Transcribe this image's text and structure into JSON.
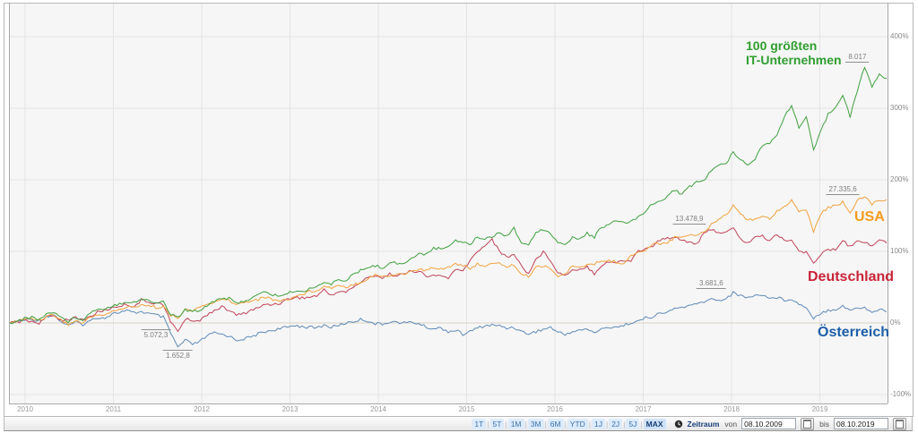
{
  "chart_data": {
    "type": "line",
    "title": "",
    "xlabel": "",
    "ylabel": "",
    "frequency": "monthly",
    "x_range": [
      "08.10.2009",
      "08.10.2019"
    ],
    "ylim": [
      -100,
      400
    ],
    "grid": true,
    "x_tick_labels": [
      "2010",
      "2011",
      "2012",
      "2013",
      "2014",
      "2015",
      "2016",
      "2017",
      "2018",
      "2019"
    ],
    "y_tick_labels": [
      "400%",
      "300%",
      "200%",
      "100%",
      "0%",
      "-100%"
    ],
    "series": [
      {
        "name": "100 größten IT-Unternehmen",
        "label_lines": [
          "100 größten",
          "IT-Unternehmen"
        ],
        "line_color": "#3fa03f",
        "label_color": "#2f9e2f",
        "label_pos": {
          "x": 832,
          "y": 43,
          "size": 14
        },
        "values": [
          0,
          3,
          6,
          8,
          5,
          12,
          16,
          8,
          2,
          8,
          5,
          14,
          20,
          20,
          24,
          27,
          30,
          29,
          33,
          31,
          28,
          30,
          12,
          8,
          18,
          16,
          18,
          25,
          31,
          35,
          34,
          27,
          31,
          34,
          39,
          44,
          39,
          38,
          41,
          45,
          43,
          48,
          52,
          56,
          54,
          61,
          60,
          67,
          73,
          78,
          80,
          77,
          85,
          83,
          84,
          90,
          96,
          97,
          105,
          103,
          108,
          116,
          113,
          110,
          120,
          118,
          121,
          126,
          122,
          133,
          112,
          108,
          128,
          131,
          126,
          112,
          108,
          120,
          117,
          125,
          120,
          134,
          138,
          142,
          139,
          142,
          148,
          157,
          166,
          171,
          177,
          186,
          180,
          190,
          197,
          199,
          213,
          220,
          222,
          240,
          228,
          222,
          230,
          248,
          252,
          262,
          288,
          305,
          272,
          288,
          240,
          268,
          292,
          302,
          320,
          288,
          325,
          358,
          330,
          348,
          340
        ]
      },
      {
        "name": "USA",
        "label_lines": [
          "USA"
        ],
        "line_color": "#f1a23e",
        "label_color": "#f59b1e",
        "label_pos": {
          "x": 953,
          "y": 234,
          "size": 16
        },
        "values": [
          0,
          3,
          5,
          6,
          4,
          9,
          12,
          4,
          -2,
          3,
          0,
          8,
          12,
          11,
          16,
          19,
          22,
          22,
          26,
          24,
          22,
          23,
          10,
          8,
          18,
          17,
          22,
          26,
          29,
          32,
          32,
          25,
          29,
          31,
          33,
          36,
          33,
          31,
          33,
          37,
          40,
          44,
          46,
          51,
          49,
          54,
          50,
          54,
          57,
          62,
          68,
          64,
          66,
          68,
          69,
          72,
          75,
          73,
          78,
          76,
          78,
          83,
          81,
          74,
          83,
          80,
          82,
          83,
          79,
          81,
          68,
          65,
          78,
          80,
          77,
          65,
          68,
          79,
          80,
          80,
          82,
          87,
          87,
          85,
          84,
          93,
          100,
          101,
          110,
          111,
          113,
          119,
          121,
          124,
          123,
          127,
          137,
          146,
          151,
          164,
          154,
          144,
          146,
          148,
          146,
          157,
          163,
          172,
          154,
          159,
          128,
          152,
          162,
          163,
          170,
          152,
          170,
          177,
          166,
          173,
          170
        ]
      },
      {
        "name": "Deutschland",
        "label_lines": [
          "Deutschland"
        ],
        "line_color": "#c04358",
        "label_color": "#c92438",
        "label_pos": {
          "x": 901,
          "y": 301,
          "size": 16
        },
        "values": [
          0,
          1,
          4,
          2,
          0,
          8,
          10,
          4,
          5,
          7,
          4,
          9,
          15,
          18,
          21,
          24,
          26,
          23,
          32,
          29,
          28,
          26,
          1,
          -11,
          5,
          4,
          3,
          12,
          18,
          22,
          18,
          11,
          13,
          18,
          21,
          26,
          26,
          28,
          33,
          36,
          35,
          36,
          38,
          46,
          39,
          44,
          43,
          50,
          57,
          63,
          67,
          63,
          68,
          67,
          68,
          73,
          72,
          65,
          66,
          66,
          63,
          74,
          72,
          88,
          99,
          109,
          117,
          100,
          92,
          96,
          80,
          69,
          89,
          99,
          88,
          71,
          66,
          75,
          75,
          79,
          69,
          81,
          86,
          84,
          87,
          87,
          101,
          103,
          108,
          116,
          118,
          121,
          116,
          113,
          111,
          124,
          131,
          127,
          126,
          132,
          118,
          111,
          121,
          121,
          115,
          124,
          116,
          116,
          100,
          98,
          85,
          96,
          102,
          102,
          116,
          106,
          117,
          112,
          108,
          117,
          112
        ]
      },
      {
        "name": "Österreich",
        "label_lines": [
          "Österreich"
        ],
        "line_color": "#5f8ab8",
        "label_color": "#1d5fa9",
        "label_pos": {
          "x": 912,
          "y": 363,
          "size": 16
        },
        "values": [
          0,
          2,
          4,
          5,
          3,
          9,
          12,
          2,
          -4,
          1,
          -2,
          3,
          8,
          7,
          13,
          15,
          17,
          14,
          16,
          13,
          11,
          8,
          -14,
          -34,
          -24,
          -30,
          -26,
          -18,
          -14,
          -16,
          -18,
          -24,
          -22,
          -20,
          -15,
          -12,
          -10,
          -8,
          -6,
          -3,
          -5,
          -6,
          -7,
          -3,
          -6,
          -3,
          0,
          2,
          5,
          3,
          -1,
          -2,
          2,
          1,
          0,
          1,
          -1,
          -6,
          -8,
          -7,
          -12,
          -10,
          -16,
          -12,
          -7,
          -4,
          -3,
          -4,
          -7,
          -6,
          -12,
          -15,
          -12,
          -9,
          -6,
          -13,
          -16,
          -12,
          -10,
          -9,
          -13,
          -9,
          -6,
          -5,
          -4,
          1,
          2,
          7,
          9,
          13,
          15,
          20,
          22,
          24,
          26,
          30,
          33,
          32,
          34,
          42,
          38,
          36,
          38,
          40,
          34,
          36,
          32,
          34,
          26,
          22,
          7,
          14,
          18,
          19,
          24,
          18,
          20,
          22,
          14,
          20,
          15
        ]
      }
    ],
    "annotations": [
      {
        "text": "8.017",
        "month": 116,
        "pct": 362,
        "line": "under"
      },
      {
        "text": "27.335,6",
        "month": 114,
        "pct": 178,
        "line": "under"
      },
      {
        "text": "13.478,9",
        "month": 93,
        "pct": 136,
        "line": "under"
      },
      {
        "text": "3.681,6",
        "month": 96,
        "pct": 46,
        "line": "under"
      },
      {
        "text": "5.072,3",
        "month": 20,
        "pct": -9,
        "line": "over"
      },
      {
        "text": "1.652,8",
        "month": 23,
        "pct": -37,
        "line": "over"
      }
    ]
  },
  "toolbar": {
    "range_buttons": [
      "1T",
      "5T",
      "1M",
      "3M",
      "6M",
      "YTD",
      "1J",
      "2J",
      "5J",
      "MAX"
    ],
    "active_button": "MAX",
    "zeitraum_label": "Zeitraum",
    "von_label": "von",
    "bis_label": "bis",
    "von_value": "08.10.2009",
    "bis_value": "08.10.2019"
  },
  "colors": {
    "plot_bg": "#f6f6f6",
    "grid": "#e4e4e4",
    "zero_line": "#d9d2c4",
    "frame": "#b8b8b8",
    "plot_border": "#a8a8a8"
  }
}
